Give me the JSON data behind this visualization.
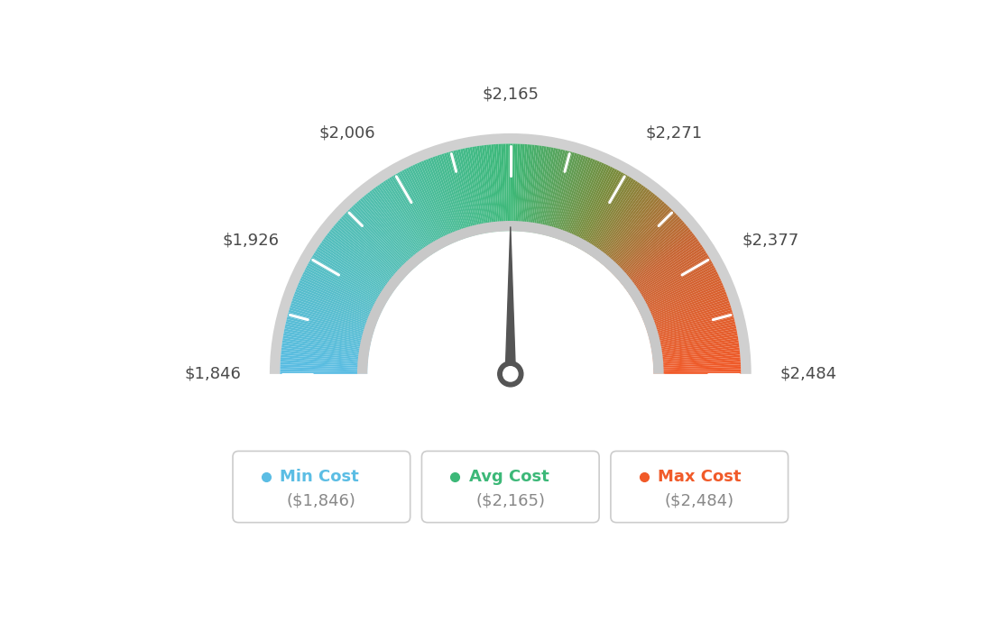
{
  "min_val": 1846,
  "max_val": 2484,
  "avg_val": 2165,
  "labels": [
    "$1,846",
    "$1,926",
    "$2,006",
    "$2,165",
    "$2,271",
    "$2,377",
    "$2,484"
  ],
  "label_values": [
    1846,
    1926,
    2006,
    2165,
    2271,
    2377,
    2484
  ],
  "label_angles": [
    180,
    150,
    120,
    90,
    60,
    30,
    0
  ],
  "min_cost_label": "Min Cost",
  "avg_cost_label": "Avg Cost",
  "max_cost_label": "Max Cost",
  "min_cost_val": "($1,846)",
  "avg_cost_val": "($2,165)",
  "max_cost_val": "($2,484)",
  "min_color": "#5bbde4",
  "avg_color": "#3cb878",
  "max_color": "#f15a29",
  "background_color": "#ffffff",
  "needle_color": "#555555",
  "outer_border_color": "#d0d0d0",
  "inner_border_color": "#c8c8c8"
}
